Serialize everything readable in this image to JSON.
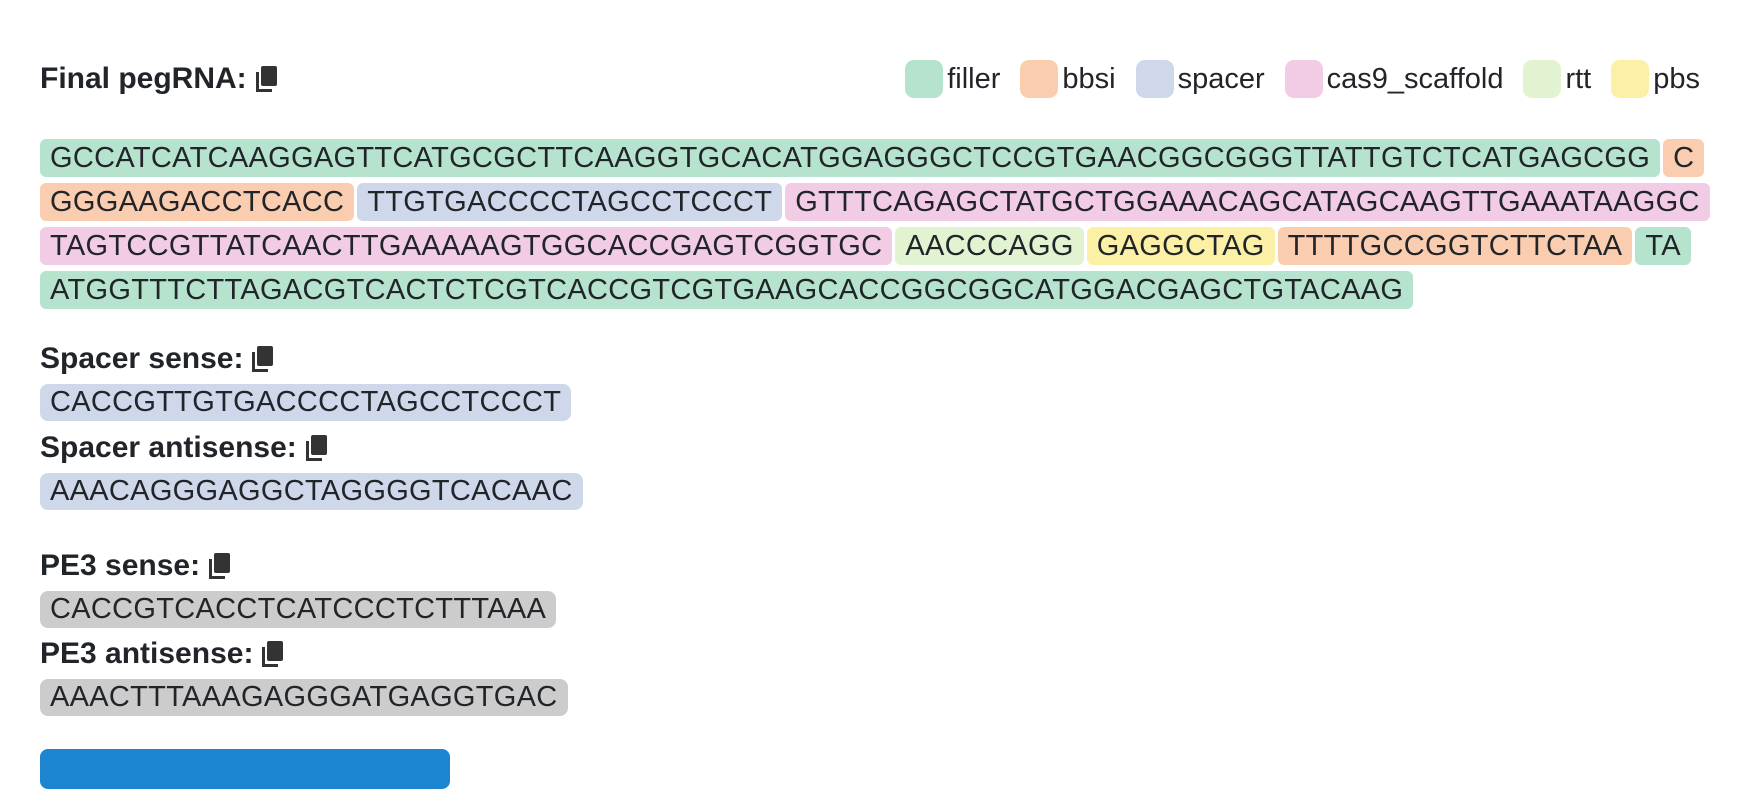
{
  "final": {
    "label": "Final pegRNA:",
    "legend": [
      {
        "name": "filler",
        "color": "#b6e3cd"
      },
      {
        "name": "bbsi",
        "color": "#fbcdb0"
      },
      {
        "name": "spacer",
        "color": "#cfd7ea"
      },
      {
        "name": "cas9_scaffold",
        "color": "#f2cbe5"
      },
      {
        "name": "rtt",
        "color": "#e2f3d2"
      },
      {
        "name": "pbs",
        "color": "#fcefa6"
      }
    ],
    "segments": [
      {
        "text": "GCCATCATCAAGGAGTTCATGCGCTTCAAGGTGCACATGGAGGGCTCCGTGAACGGCGGGTTATTGTCTCATGAGCGG",
        "color": "#b6e3cd"
      },
      {
        "text": "CGGGAAGACCTCACC",
        "color": "#fbcdb0"
      },
      {
        "text": "TTGTGACCCCTAGCCTCCCT",
        "color": "#cfd7ea"
      },
      {
        "text": "GTTTCAGAGCTATGCTGGAAACAGCATAGCAAGTTGAAATAAGGCTAGTCCGTTATCAACTTGAAAAAGTGGCACCGAGTCGGTGC",
        "color": "#f2cbe5"
      },
      {
        "text": "AACCCAGG",
        "color": "#e2f3d2"
      },
      {
        "text": "GAGGCTAG",
        "color": "#fcefa6"
      },
      {
        "text": "TTTTGCCGGTCTTCTAA",
        "color": "#fbcdb0"
      },
      {
        "text": "TAATGGTTTCTTAGACGTCACTCTCGTCACCGTCGTGAAGCACCGGCGGCATGGACGAGCTGTACAAG",
        "color": "#b6e3cd"
      }
    ]
  },
  "oligos": [
    {
      "label": "Spacer sense:",
      "sequence": "CACCGTTGTGACCCCTAGCCTCCCT",
      "color": "#cfd7ea"
    },
    {
      "label": "Spacer antisense:",
      "sequence": "AAACAGGGAGGCTAGGGGTCACAAC",
      "color": "#cfd7ea"
    },
    {
      "label": "PE3 sense:",
      "sequence": "CACCGTCACCTCATCCCTCTTTAAA",
      "color": "#cccccc"
    },
    {
      "label": "PE3 antisense:",
      "sequence": "AAACTTTAAAGAGGGATGAGGTGAC",
      "color": "#cccccc"
    }
  ]
}
